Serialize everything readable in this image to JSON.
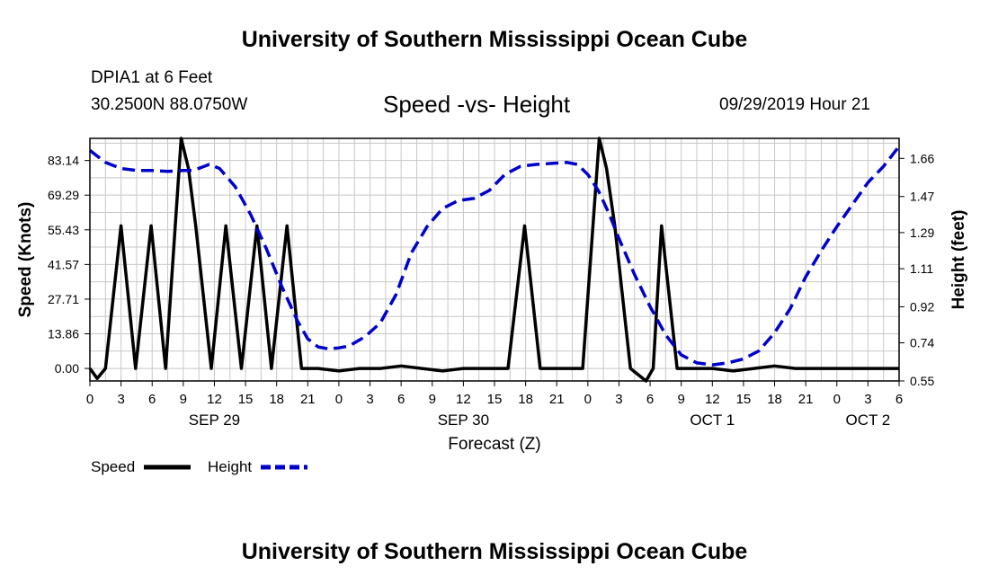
{
  "header": {
    "title": "University of Southern Mississippi Ocean Cube",
    "station": "DPIA1 at 6 Feet",
    "coords": "30.2500N 88.0750W",
    "subtitle": "Speed -vs- Height",
    "datetime": "09/29/2019 Hour 21"
  },
  "footer": {
    "title": "University of Southern Mississippi Ocean Cube"
  },
  "legend": {
    "speed": "Speed",
    "height": "Height"
  },
  "colors": {
    "speed": "#000000",
    "height": "#0000cc",
    "grid": "#c8c8c8"
  },
  "chart_data": {
    "type": "line",
    "title": "Speed -vs- Height",
    "xlabel": "Forecast (Z)",
    "ylabel": "Speed (Knots)",
    "y2label": "Height (feet)",
    "x_range_hours": [
      0,
      78
    ],
    "x_ticks": [
      {
        "h": 0,
        "label": "0"
      },
      {
        "h": 3,
        "label": "3"
      },
      {
        "h": 6,
        "label": "6"
      },
      {
        "h": 9,
        "label": "9"
      },
      {
        "h": 12,
        "label": "12"
      },
      {
        "h": 15,
        "label": "15"
      },
      {
        "h": 18,
        "label": "18"
      },
      {
        "h": 21,
        "label": "21"
      },
      {
        "h": 24,
        "label": "0"
      },
      {
        "h": 27,
        "label": "3"
      },
      {
        "h": 30,
        "label": "6"
      },
      {
        "h": 33,
        "label": "9"
      },
      {
        "h": 36,
        "label": "12"
      },
      {
        "h": 39,
        "label": "15"
      },
      {
        "h": 42,
        "label": "18"
      },
      {
        "h": 45,
        "label": "21"
      },
      {
        "h": 48,
        "label": "0"
      },
      {
        "h": 51,
        "label": "3"
      },
      {
        "h": 54,
        "label": "6"
      },
      {
        "h": 57,
        "label": "9"
      },
      {
        "h": 60,
        "label": "12"
      },
      {
        "h": 63,
        "label": "15"
      },
      {
        "h": 66,
        "label": "18"
      },
      {
        "h": 69,
        "label": "21"
      },
      {
        "h": 72,
        "label": "0"
      },
      {
        "h": 75,
        "label": "3"
      },
      {
        "h": 78,
        "label": "6"
      }
    ],
    "date_labels": [
      {
        "h": 12,
        "label": "SEP 29"
      },
      {
        "h": 36,
        "label": "SEP 30"
      },
      {
        "h": 60,
        "label": "OCT 1"
      },
      {
        "h": 75,
        "label": "OCT 2"
      }
    ],
    "y_left": {
      "range": [
        -5,
        92
      ],
      "ticks": [
        0,
        13.86,
        27.71,
        41.57,
        55.43,
        69.29,
        83.14
      ],
      "tick_labels": [
        "0.00",
        "13.86",
        "27.71",
        "41.57",
        "55.43",
        "69.29",
        "83.14"
      ]
    },
    "y_right": {
      "range": [
        0.55,
        1.76
      ],
      "ticks": [
        0.55,
        0.74,
        0.92,
        1.11,
        1.29,
        1.47,
        1.66
      ],
      "tick_labels": [
        "0.55",
        "0.74",
        "0.92",
        "1.11",
        "1.29",
        "1.47",
        "1.66"
      ]
    },
    "series": [
      {
        "name": "Speed",
        "axis": "left",
        "style": "solid",
        "x": [
          0,
          0.7,
          1.5,
          3,
          4.4,
          5.9,
          7.3,
          8.8,
          9.5,
          10.2,
          11.7,
          13.1,
          14.6,
          16.1,
          17.5,
          19,
          20.4,
          22,
          24,
          26,
          28,
          30,
          32,
          34,
          36,
          38,
          40.3,
          41.9,
          43.4,
          45,
          47.5,
          49.1,
          49.8,
          50.6,
          52.1,
          53.6,
          54.3,
          55.1,
          56.6,
          57.9,
          60,
          62,
          64,
          66,
          68,
          70,
          72,
          74,
          76,
          78
        ],
        "y": [
          0,
          -4,
          0,
          57,
          0,
          57,
          0,
          92,
          80,
          57,
          0,
          57,
          0,
          57,
          0,
          57,
          0,
          0,
          -1,
          0,
          0,
          1,
          0,
          -1,
          0,
          0,
          0,
          57,
          0,
          0,
          0,
          92,
          80,
          57,
          0,
          -5,
          0,
          57,
          0,
          0,
          0,
          -1,
          0,
          1,
          0,
          0,
          0,
          0,
          0,
          0
        ]
      },
      {
        "name": "Height",
        "axis": "right",
        "style": "dashed",
        "x": [
          0,
          1.5,
          3,
          4.5,
          6,
          7.5,
          9,
          10,
          11,
          11.5,
          12.5,
          14,
          15.5,
          17,
          18.5,
          20,
          21,
          22,
          23,
          24,
          25,
          26.5,
          28,
          29.5,
          31,
          32.5,
          34,
          35.5,
          37,
          38.5,
          40,
          41.5,
          43,
          44.5,
          46,
          47,
          48,
          49,
          50,
          51,
          52.5,
          54,
          55.5,
          57,
          58.5,
          60,
          61.5,
          63,
          64.5,
          66,
          67.5,
          69,
          70.5,
          72,
          73.5,
          75,
          76.5,
          78
        ],
        "y": [
          1.7,
          1.64,
          1.61,
          1.6,
          1.6,
          1.595,
          1.6,
          1.6,
          1.62,
          1.63,
          1.61,
          1.52,
          1.38,
          1.21,
          1.02,
          0.85,
          0.76,
          0.72,
          0.71,
          0.715,
          0.725,
          0.77,
          0.84,
          0.98,
          1.19,
          1.32,
          1.41,
          1.45,
          1.46,
          1.5,
          1.58,
          1.62,
          1.63,
          1.635,
          1.64,
          1.63,
          1.58,
          1.5,
          1.39,
          1.26,
          1.08,
          0.92,
          0.78,
          0.68,
          0.64,
          0.63,
          0.64,
          0.66,
          0.7,
          0.79,
          0.91,
          1.07,
          1.2,
          1.32,
          1.43,
          1.54,
          1.62,
          1.72
        ]
      }
    ]
  }
}
